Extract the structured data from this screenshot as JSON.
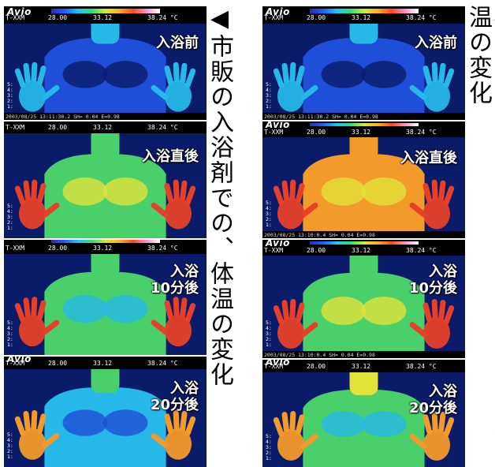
{
  "titles": {
    "left": "◀市販の入浴剤での、体温の変化",
    "right": "◀SRJ製品『スパストーン』の、体温の変化"
  },
  "hud": {
    "logo": "Avio",
    "mode": "T-XXM",
    "t_min": "28.00",
    "t_mid": "33.12",
    "t_max": "38.24 °C",
    "scale_marks": "5:\n4:\n3:\n2:\n1:"
  },
  "footers": {
    "before": "2003/08/25 13:11:30.2    SH=  0.04 E=0.98",
    "after_bath": "2003/08/25 13:10:0.4   SH=  0.04 E=0.98",
    "after_10": "2003/08/25 13:10:0.4   SH=  0.04 E=0.98"
  },
  "panels": {
    "left": [
      {
        "label": "入浴前",
        "state": "cool"
      },
      {
        "label": "入浴直後",
        "state": "warm"
      },
      {
        "label": "入浴\n10分後",
        "state": "mid"
      },
      {
        "label": "入浴\n20分後",
        "state": "coolish"
      }
    ],
    "right": [
      {
        "label": "入浴前",
        "state": "cool"
      },
      {
        "label": "入浴直後",
        "state": "hot"
      },
      {
        "label": "入浴\n10分後",
        "state": "warm"
      },
      {
        "label": "入浴\n20分後",
        "state": "warmish"
      }
    ]
  },
  "palette": {
    "deep": "#0a1b6a",
    "blue": "#1f4fd8",
    "cyan": "#25b8e8",
    "green": "#49d06a",
    "yellow": "#e2e23a",
    "orange": "#f29a2a",
    "red": "#e6402a"
  }
}
